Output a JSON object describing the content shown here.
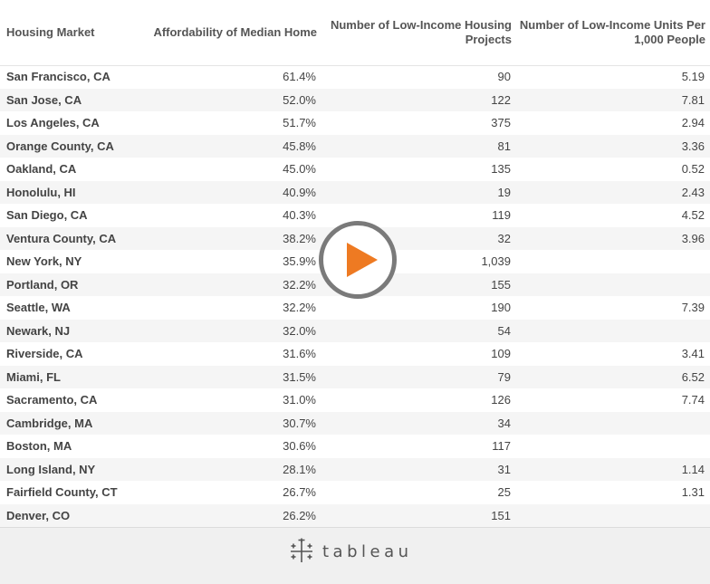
{
  "table": {
    "headers": {
      "market": "Housing Market",
      "affordability": "Affordability of Median Home",
      "projects_line1": "Number of Low-Income Housing",
      "projects_line2": "Projects",
      "units_line1": "Number of Low-Income Units Per",
      "units_line2": "1,000 People"
    },
    "rows": [
      {
        "market": "San Francisco, CA",
        "affordability": "61.4%",
        "projects": "90",
        "units": "5.19"
      },
      {
        "market": "San Jose, CA",
        "affordability": "52.0%",
        "projects": "122",
        "units": "7.81"
      },
      {
        "market": "Los Angeles, CA",
        "affordability": "51.7%",
        "projects": "375",
        "units": "2.94"
      },
      {
        "market": "Orange County, CA",
        "affordability": "45.8%",
        "projects": "81",
        "units": "3.36"
      },
      {
        "market": "Oakland, CA",
        "affordability": "45.0%",
        "projects": "135",
        "units": "0.52"
      },
      {
        "market": "Honolulu, HI",
        "affordability": "40.9%",
        "projects": "19",
        "units": "2.43"
      },
      {
        "market": "San Diego, CA",
        "affordability": "40.3%",
        "projects": "119",
        "units": "4.52"
      },
      {
        "market": "Ventura County, CA",
        "affordability": "38.2%",
        "projects": "32",
        "units": "3.96"
      },
      {
        "market": "New York, NY",
        "affordability": "35.9%",
        "projects": "1,039",
        "units": ""
      },
      {
        "market": "Portland, OR",
        "affordability": "32.2%",
        "projects": "155",
        "units": ""
      },
      {
        "market": "Seattle, WA",
        "affordability": "32.2%",
        "projects": "190",
        "units": "7.39"
      },
      {
        "market": "Newark, NJ",
        "affordability": "32.0%",
        "projects": "54",
        "units": ""
      },
      {
        "market": "Riverside, CA",
        "affordability": "31.6%",
        "projects": "109",
        "units": "3.41"
      },
      {
        "market": "Miami, FL",
        "affordability": "31.5%",
        "projects": "79",
        "units": "6.52"
      },
      {
        "market": "Sacramento, CA",
        "affordability": "31.0%",
        "projects": "126",
        "units": "7.74"
      },
      {
        "market": "Cambridge, MA",
        "affordability": "30.7%",
        "projects": "34",
        "units": ""
      },
      {
        "market": "Boston, MA",
        "affordability": "30.6%",
        "projects": "117",
        "units": ""
      },
      {
        "market": "Long Island, NY",
        "affordability": "28.1%",
        "projects": "31",
        "units": "1.14"
      },
      {
        "market": "Fairfield County, CT",
        "affordability": "26.7%",
        "projects": "25",
        "units": "1.31"
      },
      {
        "market": "Denver, CO",
        "affordability": "26.2%",
        "projects": "151",
        "units": ""
      }
    ]
  },
  "footer": {
    "logo_text": "tableau",
    "logo_icon": "tableau-cross-icon"
  },
  "overlay": {
    "play_icon": "play-icon",
    "accent_color": "#ee7a22"
  }
}
